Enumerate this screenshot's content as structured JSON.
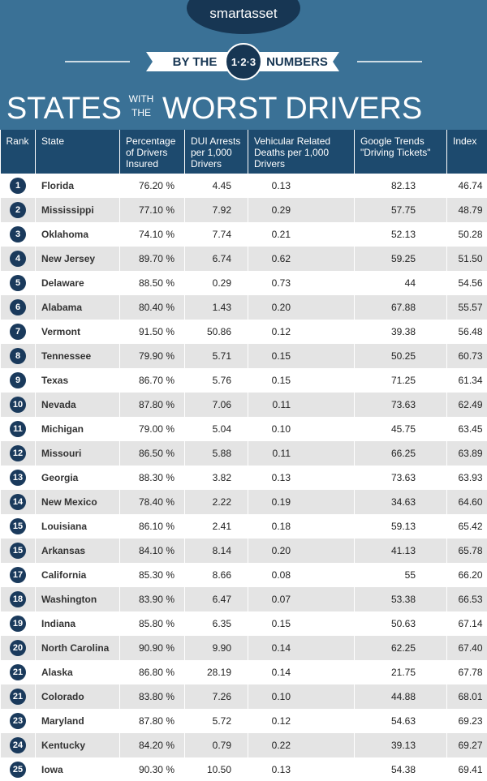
{
  "header": {
    "brand": "smartasset",
    "by_the": "BY THE",
    "badge": "1·2·3",
    "numbers": "NUMBERS",
    "title_start": "STATES",
    "title_with": "WITH",
    "title_the": "THE",
    "title_end": "WORST DRIVERS"
  },
  "table": {
    "columns": [
      "Rank",
      "State",
      "Percentage of Drivers Insured",
      "DUI Arrests per 1,000 Drivers",
      "Vehicular Related Deaths per 1,000 Drivers",
      "Google Trends \"Driving Tickets\"",
      "Index"
    ],
    "rows": [
      [
        "1",
        "Florida",
        "76.20 %",
        "4.45",
        "0.13",
        "82.13",
        "46.74"
      ],
      [
        "2",
        "Mississippi",
        "77.10 %",
        "7.92",
        "0.29",
        "57.75",
        "48.79"
      ],
      [
        "3",
        "Oklahoma",
        "74.10 %",
        "7.74",
        "0.21",
        "52.13",
        "50.28"
      ],
      [
        "4",
        "New Jersey",
        "89.70 %",
        "6.74",
        "0.62",
        "59.25",
        "51.50"
      ],
      [
        "5",
        "Delaware",
        "88.50 %",
        "0.29",
        "0.73",
        "44",
        "54.56"
      ],
      [
        "6",
        "Alabama",
        "80.40 %",
        "1.43",
        "0.20",
        "67.88",
        "55.57"
      ],
      [
        "7",
        "Vermont",
        "91.50 %",
        "50.86",
        "0.12",
        "39.38",
        "56.48"
      ],
      [
        "8",
        "Tennessee",
        "79.90 %",
        "5.71",
        "0.15",
        "50.25",
        "60.73"
      ],
      [
        "9",
        "Texas",
        "86.70 %",
        "5.76",
        "0.15",
        "71.25",
        "61.34"
      ],
      [
        "10",
        "Nevada",
        "87.80 %",
        "7.06",
        "0.11",
        "73.63",
        "62.49"
      ],
      [
        "11",
        "Michigan",
        "79.00 %",
        "5.04",
        "0.10",
        "45.75",
        "63.45"
      ],
      [
        "12",
        "Missouri",
        "86.50 %",
        "5.88",
        "0.11",
        "66.25",
        "63.89"
      ],
      [
        "13",
        "Georgia",
        "88.30 %",
        "3.82",
        "0.13",
        "73.63",
        "63.93"
      ],
      [
        "14",
        "New Mexico",
        "78.40 %",
        "2.22",
        "0.19",
        "34.63",
        "64.60"
      ],
      [
        "15",
        "Louisiana",
        "86.10 %",
        "2.41",
        "0.18",
        "59.13",
        "65.42"
      ],
      [
        "15",
        "Arkansas",
        "84.10 %",
        "8.14",
        "0.20",
        "41.13",
        "65.78"
      ],
      [
        "17",
        "California",
        "85.30 %",
        "8.66",
        "0.08",
        "55",
        "66.20"
      ],
      [
        "18",
        "Washington",
        "83.90 %",
        "6.47",
        "0.07",
        "53.38",
        "66.53"
      ],
      [
        "19",
        "Indiana",
        "85.80 %",
        "6.35",
        "0.15",
        "50.63",
        "67.14"
      ],
      [
        "20",
        "North Carolina",
        "90.90 %",
        "9.90",
        "0.14",
        "62.25",
        "67.40"
      ],
      [
        "21",
        "Alaska",
        "86.80 %",
        "28.19",
        "0.14",
        "21.75",
        "67.78"
      ],
      [
        "21",
        "Colorado",
        "83.80 %",
        "7.26",
        "0.10",
        "44.88",
        "68.01"
      ],
      [
        "23",
        "Maryland",
        "87.80 %",
        "5.72",
        "0.12",
        "54.63",
        "69.23"
      ],
      [
        "24",
        "Kentucky",
        "84.20 %",
        "0.79",
        "0.22",
        "39.13",
        "69.27"
      ],
      [
        "25",
        "Iowa",
        "90.30 %",
        "10.50",
        "0.13",
        "54.38",
        "69.41"
      ]
    ]
  }
}
